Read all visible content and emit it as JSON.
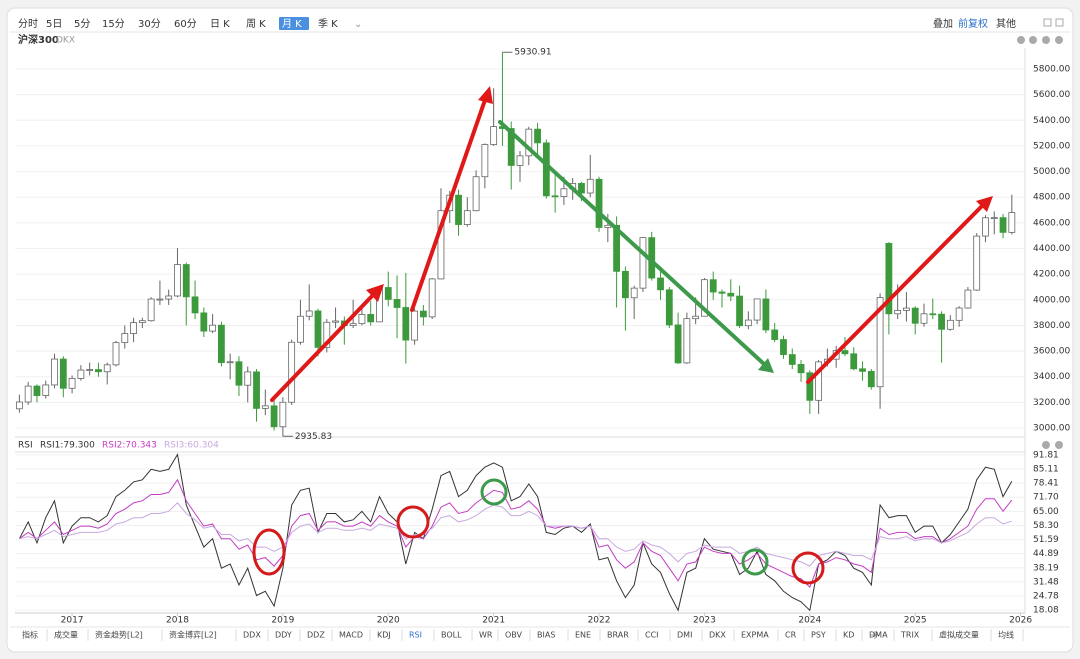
{
  "toolbar": {
    "periods": [
      "分时",
      "5日",
      "5分",
      "15分",
      "30分",
      "60分",
      "日 K",
      "周 K",
      "月 K",
      "季 K"
    ],
    "options": [
      "叠加",
      "前复权",
      "其他"
    ]
  },
  "tabs": [
    "指标",
    "成交量",
    "资金趋势[L2]",
    "资金博弈[L2]",
    "DDX",
    "DDY",
    "DDZ",
    "MACD",
    "KDJ",
    "RSI",
    "BOLL",
    "WR",
    "OBV",
    "BIAS",
    "ENE",
    "BRAR",
    "CCI",
    "DMI",
    "DKX",
    "EXPMA",
    "CR",
    "PSY",
    "KD",
    "DMA",
    "TRIX",
    "虚拟成交量",
    "均线"
  ],
  "chart_data": [
    {
      "type": "candlestick",
      "title": "沪深300",
      "indicator": "DKX",
      "categories": [
        null,
        null,
        null,
        null,
        null,
        null,
        "2017",
        null,
        null,
        null,
        null,
        null,
        null,
        null,
        null,
        null,
        null,
        null,
        "2018",
        null,
        null,
        null,
        null,
        null,
        null,
        null,
        null,
        null,
        null,
        null,
        "2019",
        null,
        null,
        null,
        null,
        null,
        null,
        null,
        null,
        null,
        null,
        null,
        "2020",
        null,
        null,
        null,
        null,
        null,
        null,
        null,
        null,
        null,
        null,
        null,
        "2021",
        null,
        null,
        null,
        null,
        null,
        null,
        null,
        null,
        null,
        null,
        null,
        "2022",
        null,
        null,
        null,
        null,
        null,
        null,
        null,
        null,
        null,
        null,
        null,
        "2023",
        null,
        null,
        null,
        null,
        null,
        null,
        null,
        null,
        null,
        null,
        null,
        "2024",
        null,
        null,
        null,
        null,
        null,
        null,
        null,
        null,
        null,
        null,
        null,
        "2025",
        null,
        null,
        null,
        null,
        null,
        null,
        null,
        null,
        null,
        null,
        null,
        "2026"
      ],
      "open": [
        3150,
        3203,
        3327,
        3253,
        3336,
        3538,
        3310,
        3387,
        3452,
        3456,
        3439,
        3493,
        3666,
        3737,
        3822,
        3837,
        4006,
        4006,
        4030,
        4275,
        4023,
        3898,
        3756,
        3802,
        3510,
        3517,
        3334,
        3438,
        3153,
        3173,
        3010,
        3201,
        3669,
        3872,
        3913,
        3629,
        3825,
        3835,
        3799,
        3814,
        3886,
        3828,
        4096,
        4003,
        3940,
        3686,
        3912,
        3867,
        4163,
        4695,
        4816,
        4587,
        4695,
        4960,
        5211,
        5351,
        5336,
        5048,
        5123,
        5331,
        5224,
        4811,
        4806,
        4866,
        4908,
        4833,
        4940,
        4564,
        4581,
        4222,
        4016,
        4091,
        4485,
        4170,
        4078,
        3804,
        3508,
        3853,
        3872,
        4157,
        4061,
        4051,
        4029,
        3798,
        3842,
        4007,
        3765,
        3690,
        3573,
        3496,
        3431,
        3216,
        3516,
        3537,
        3604,
        3579,
        3462,
        3442,
        3322,
        4440,
        3891,
        3917,
        3935,
        3817,
        3891,
        3888,
        3770,
        3840,
        3936,
        4076,
        4497,
        4640,
        4641,
        4526,
        null
      ],
      "high": [
        3260,
        3360,
        3340,
        3370,
        3580,
        3560,
        3410,
        3490,
        3510,
        3510,
        3510,
        3680,
        3800,
        3860,
        3860,
        4020,
        4150,
        4080,
        4403,
        4290,
        4150,
        3940,
        3890,
        3830,
        3580,
        3560,
        3480,
        3460,
        3300,
        3230,
        3240,
        3690,
        4000,
        4120,
        3930,
        3850,
        3940,
        3870,
        4000,
        3950,
        3990,
        4100,
        4220,
        4190,
        4210,
        3930,
        3960,
        4170,
        4870,
        4850,
        4860,
        4800,
        5010,
        5220,
        5650,
        5930.91,
        5390,
        5160,
        5350,
        5380,
        5250,
        4990,
        4960,
        4950,
        4920,
        5130,
        4960,
        4670,
        4650,
        4260,
        4110,
        4490,
        4530,
        4250,
        4100,
        3900,
        3900,
        4020,
        4170,
        4220,
        4080,
        4160,
        4110,
        3910,
        4010,
        4080,
        3820,
        3720,
        3620,
        3530,
        3450,
        3530,
        3620,
        3640,
        3710,
        3630,
        3520,
        3460,
        4050,
        4450,
        4120,
        4060,
        3950,
        3970,
        4010,
        3910,
        3880,
        3950,
        4100,
        4520,
        4660,
        4690,
        4670,
        4820,
        null
      ],
      "low": [
        3120,
        3180,
        3200,
        3230,
        3310,
        3240,
        3270,
        3370,
        3410,
        3400,
        3340,
        3480,
        3620,
        3670,
        3780,
        3830,
        3960,
        3960,
        4020,
        3800,
        3850,
        3710,
        3740,
        3480,
        3380,
        3250,
        3200,
        3050,
        3100,
        2980,
        2935.83,
        3180,
        3650,
        3840,
        3560,
        3590,
        3780,
        3650,
        3780,
        3800,
        3800,
        3830,
        3950,
        3700,
        3503,
        3650,
        3800,
        3850,
        4160,
        4600,
        4500,
        4570,
        4690,
        4870,
        5200,
        5200,
        4860,
        4920,
        5050,
        5110,
        4790,
        4680,
        4740,
        4780,
        4770,
        4800,
        4530,
        4450,
        3940,
        3760,
        3850,
        4060,
        4150,
        4000,
        3780,
        3500,
        3500,
        3810,
        3870,
        4000,
        3940,
        3990,
        3780,
        3770,
        3810,
        3740,
        3670,
        3540,
        3460,
        3360,
        3110,
        3110,
        3480,
        3470,
        3560,
        3450,
        3370,
        3300,
        3150,
        3730,
        3850,
        3830,
        3730,
        3790,
        3850,
        3510,
        3760,
        3790,
        3930,
        4070,
        4450,
        4510,
        4480,
        4510,
        null
      ],
      "close": [
        3203,
        3327,
        3253,
        3336,
        3538,
        3310,
        3387,
        3452,
        3456,
        3439,
        3493,
        3666,
        3737,
        3822,
        3837,
        4006,
        4006,
        4030,
        4275,
        4023,
        3898,
        3756,
        3802,
        3510,
        3517,
        3334,
        3438,
        3153,
        3173,
        3010,
        3201,
        3669,
        3872,
        3913,
        3629,
        3825,
        3835,
        3799,
        3814,
        3886,
        3828,
        4096,
        4003,
        3940,
        3686,
        3912,
        3867,
        4163,
        4695,
        4816,
        4587,
        4695,
        4960,
        5211,
        5351,
        5336,
        5048,
        5123,
        5331,
        5224,
        4811,
        4806,
        4866,
        4908,
        4833,
        4940,
        4564,
        4581,
        4222,
        4016,
        4091,
        4485,
        4170,
        4078,
        3804,
        3508,
        3853,
        3872,
        4157,
        4061,
        4051,
        4029,
        3798,
        3842,
        4007,
        3765,
        3690,
        3573,
        3496,
        3431,
        3216,
        3516,
        3537,
        3604,
        3579,
        3462,
        3442,
        3322,
        4018,
        3891,
        3917,
        3935,
        3817,
        3891,
        3888,
        3770,
        3840,
        3936,
        4076,
        4497,
        4640,
        4641,
        4526,
        4680,
        null
      ],
      "up_color": "#ffffff",
      "down_color": "#3c9a3c",
      "ylim": [
        2930,
        5964
      ],
      "yticks": [
        {
          "value": 3000,
          "label": "3000.00"
        },
        {
          "value": 3200,
          "label": "3200.00"
        },
        {
          "value": 3400,
          "label": "3400.00"
        },
        {
          "value": 3600,
          "label": "3600.00"
        },
        {
          "value": 3800,
          "label": "3800.00"
        },
        {
          "value": 4000,
          "label": "4000.00"
        },
        {
          "value": 4200,
          "label": "4200.00"
        },
        {
          "value": 4400,
          "label": "4400.00"
        },
        {
          "value": 4600,
          "label": "4600.00"
        },
        {
          "value": 4800,
          "label": "4800.00"
        },
        {
          "value": 5000,
          "label": "5000.00"
        },
        {
          "value": 5200,
          "label": "5200.00"
        },
        {
          "value": 5400,
          "label": "5400.00"
        },
        {
          "value": 5600,
          "label": "5600.00"
        },
        {
          "value": 5800,
          "label": "5800.00"
        }
      ],
      "grid": true
    },
    {
      "type": "line",
      "title": "RSI",
      "series": [
        {
          "name": "RSI1:79.300",
          "color": "#333333",
          "values": [
            52,
            60,
            50,
            62,
            70,
            50,
            58,
            62,
            62,
            60,
            63,
            72,
            75,
            79,
            80,
            85,
            84,
            85,
            92,
            68,
            58,
            48,
            52,
            38,
            40,
            30,
            38,
            25,
            27,
            20,
            38,
            68,
            75,
            76,
            55,
            64,
            64,
            60,
            61,
            65,
            60,
            72,
            64,
            60,
            40,
            55,
            52,
            66,
            82,
            84,
            72,
            75,
            82,
            86,
            88,
            86,
            70,
            72,
            78,
            72,
            55,
            54,
            57,
            58,
            55,
            59,
            42,
            43,
            32,
            24,
            30,
            50,
            40,
            36,
            26,
            18,
            36,
            38,
            52,
            47,
            46,
            45,
            35,
            38,
            46,
            35,
            32,
            27,
            24,
            22,
            18,
            40,
            42,
            46,
            44,
            38,
            36,
            30,
            68,
            62,
            63,
            63,
            55,
            58,
            58,
            50,
            54,
            60,
            66,
            80,
            86,
            85,
            72,
            79.3,
            null
          ]
        },
        {
          "name": "RSI2:70.343",
          "color": "#c23ec2",
          "values": [
            52,
            55,
            52,
            56,
            60,
            54,
            56,
            58,
            58,
            57,
            59,
            64,
            66,
            69,
            70,
            73,
            73,
            74,
            80,
            70,
            64,
            58,
            59,
            52,
            52,
            47,
            49,
            42,
            43,
            39,
            44,
            58,
            63,
            64,
            56,
            60,
            60,
            58,
            58,
            60,
            58,
            63,
            60,
            58,
            48,
            53,
            52,
            58,
            67,
            69,
            64,
            65,
            69,
            72,
            75,
            74,
            66,
            67,
            70,
            66,
            58,
            57,
            58,
            58,
            57,
            58,
            48,
            49,
            42,
            38,
            41,
            50,
            46,
            44,
            38,
            32,
            40,
            41,
            48,
            46,
            45,
            45,
            40,
            42,
            45,
            40,
            38,
            36,
            34,
            33,
            29,
            40,
            41,
            43,
            42,
            40,
            39,
            36,
            57,
            54,
            55,
            55,
            52,
            53,
            53,
            50,
            52,
            55,
            58,
            66,
            71,
            71,
            65,
            70.343,
            null
          ]
        },
        {
          "name": "RSI3:60.304",
          "color": "#c8a8e0",
          "values": [
            52,
            53,
            52,
            54,
            56,
            53,
            54,
            55,
            55,
            55,
            56,
            59,
            60,
            62,
            62,
            64,
            64,
            65,
            69,
            64,
            61,
            57,
            58,
            54,
            54,
            51,
            52,
            48,
            48,
            46,
            48,
            55,
            58,
            59,
            55,
            57,
            57,
            56,
            56,
            57,
            56,
            59,
            58,
            57,
            52,
            54,
            54,
            57,
            62,
            63,
            60,
            61,
            63,
            66,
            68,
            67,
            63,
            63,
            65,
            63,
            58,
            58,
            58,
            58,
            57,
            58,
            52,
            52,
            48,
            46,
            47,
            51,
            49,
            48,
            45,
            41,
            45,
            46,
            49,
            48,
            48,
            48,
            45,
            46,
            48,
            45,
            44,
            43,
            42,
            41,
            39,
            44,
            45,
            46,
            45,
            44,
            44,
            42,
            53,
            52,
            52,
            53,
            51,
            52,
            52,
            50,
            51,
            53,
            55,
            59,
            62,
            62,
            59,
            60.304,
            null
          ]
        }
      ],
      "ylim": [
        16.7,
        93.2
      ],
      "yticks": [
        91.81,
        85.11,
        78.41,
        {
          "value": 71.7,
          "label": "71.70"
        },
        {
          "value": 65,
          "label": "65.00"
        },
        {
          "value": 58.3,
          "label": "58.30"
        },
        51.59,
        44.89,
        38.19,
        31.48,
        24.78,
        18.08
      ],
      "grid": true
    }
  ]
}
